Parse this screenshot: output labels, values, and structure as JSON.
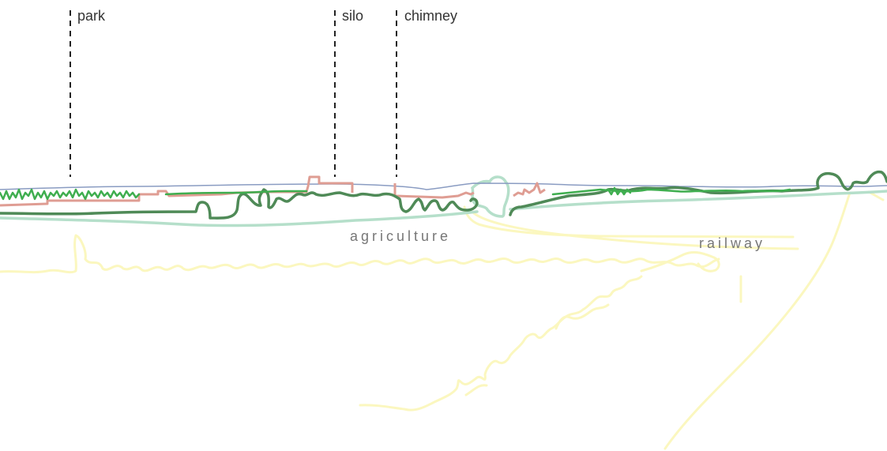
{
  "callouts": {
    "park": "park",
    "silo": "silo",
    "chimney": "chimney"
  },
  "zones": {
    "agriculture": "agriculture",
    "railway": "railway"
  },
  "colors": {
    "sky_line": "#8a9cc2",
    "trees_dark": "#4f8a57",
    "trees_bright": "#3fae4f",
    "buildings": "#df9d93",
    "ground_line": "#b5dfca",
    "fields": "#fbf7bf",
    "callout_line": "#222222"
  }
}
